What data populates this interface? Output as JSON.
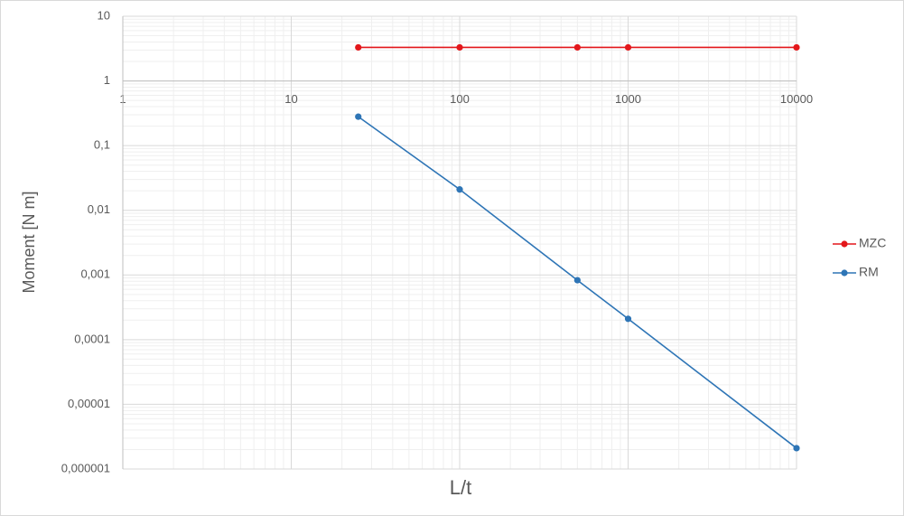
{
  "chart_data": {
    "type": "line",
    "x_label": "L/t",
    "y_label": "Moment [N m]",
    "x": [
      25,
      100,
      500,
      1000,
      10000
    ],
    "series": [
      {
        "name": "MZC",
        "color": "#e3171b",
        "values": [
          3.3,
          3.3,
          3.3,
          3.3,
          3.3
        ]
      },
      {
        "name": "RM",
        "color": "#2e75b6",
        "values": [
          0.28,
          0.021,
          0.00083,
          0.00021,
          2.1e-06
        ]
      }
    ],
    "xlim": [
      1,
      10000
    ],
    "ylim": [
      1e-06,
      10
    ],
    "xticks": [
      1,
      10,
      100,
      1000,
      10000
    ],
    "yticks": [
      {
        "value": 1e-06,
        "label": "0,000001"
      },
      {
        "value": 1e-05,
        "label": "0,00001"
      },
      {
        "value": 0.0001,
        "label": "0,0001"
      },
      {
        "value": 0.001,
        "label": "0,001"
      },
      {
        "value": 0.01,
        "label": "0,01"
      },
      {
        "value": 0.1,
        "label": "0,1"
      },
      1,
      10
    ],
    "x_axis_crosses": 1,
    "xscale": "log",
    "yscale": "log",
    "grid": true,
    "minor_grid": true,
    "legend": "right"
  }
}
